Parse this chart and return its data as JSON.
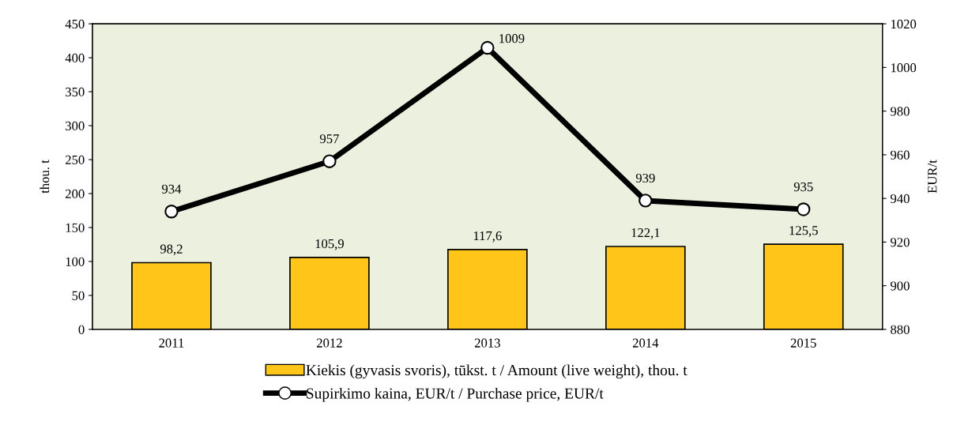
{
  "chart_data": {
    "type": "bar",
    "categories": [
      "2011",
      "2012",
      "2013",
      "2014",
      "2015"
    ],
    "series": [
      {
        "name": "Kiekis (gyvasis svoris), tūkst. t / Amount (live weight), thou. t",
        "color": "#ffc619",
        "values": [
          98.2,
          105.9,
          117.6,
          122.1,
          125.5
        ],
        "value_labels": [
          "98,2",
          "105,9",
          "117,6",
          "122,1",
          "125,5"
        ]
      },
      {
        "name": "Supirkimo kaina, EUR/t / Purchase price, EUR/t",
        "type": "line",
        "axis": "y2",
        "color": "#000000",
        "marker": "circle",
        "values": [
          934,
          957,
          1009,
          939,
          935
        ],
        "value_labels": [
          "934",
          "957",
          "1009",
          "939",
          "935"
        ]
      }
    ],
    "ylabel": "thou. t",
    "y2label": "EUR/t",
    "ylim": [
      0,
      450
    ],
    "yticks": [
      0,
      50,
      100,
      150,
      200,
      250,
      300,
      350,
      400,
      450
    ],
    "y2lim": [
      880,
      1020
    ],
    "y2ticks": [
      880,
      900,
      920,
      940,
      960,
      980,
      1000,
      1020
    ],
    "grid": false,
    "legend": "bottom"
  }
}
